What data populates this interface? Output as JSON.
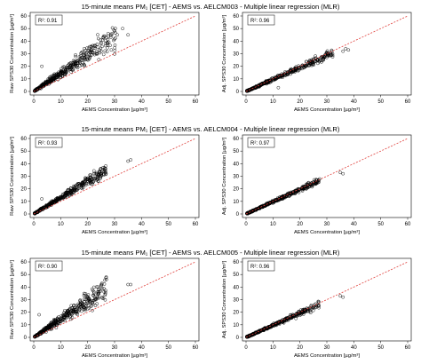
{
  "figure": {
    "rows": [
      {
        "title": "15-minute means PM₁ [CET] - AEMS vs. AELCM003 - Multiple linear regression (MLR)",
        "panels": [
          {
            "r2_label": "R²: 0.91",
            "ylabel": "Raw SPS30 Concentration [µg/m³]",
            "xlabel": "AEMS Concentration [µg/m³]"
          },
          {
            "r2_label": "R²: 0.96",
            "ylabel": "Adj. SPS30 Concentration [µg/m³]",
            "xlabel": "AEMS Concentration [µg/m³]"
          }
        ]
      },
      {
        "title": "15-minute means PM₁ [CET] - AEMS vs. AELCM004 - Multiple linear regression (MLR)",
        "panels": [
          {
            "r2_label": "R²: 0.93",
            "ylabel": "Raw SPS30 Concentration [µg/m³]",
            "xlabel": "AEMS Concentration [µg/m³]"
          },
          {
            "r2_label": "R²: 0.97",
            "ylabel": "Adj. SPS30 Concentration [µg/m³]",
            "xlabel": "AEMS Concentration [µg/m³]"
          }
        ]
      },
      {
        "title": "15-minute means PM₁ [CET] - AEMS vs. AELCM005 - Multiple linear regression (MLR)",
        "panels": [
          {
            "r2_label": "R²: 0.90",
            "ylabel": "Raw SPS30 Concentration [µg/m³]",
            "xlabel": "AEMS Concentration [µg/m³]"
          },
          {
            "r2_label": "R²: 0.96",
            "ylabel": "Adj. SPS30 Concentration [µg/m³]",
            "xlabel": "AEMS Concentration [µg/m³]"
          }
        ]
      }
    ]
  },
  "chart_data": [
    {
      "type": "scatter",
      "panel": "AELCM003 raw",
      "xlabel": "AEMS Concentration [µg/m³]",
      "ylabel": "Raw SPS30 Concentration [µg/m³]",
      "r2": 0.91,
      "xlim": [
        0,
        60
      ],
      "ylim": [
        0,
        60
      ],
      "xticks": [
        0,
        10,
        20,
        30,
        40,
        50,
        60
      ],
      "yticks": [
        0,
        10,
        20,
        30,
        40,
        50,
        60
      ],
      "reference_line": "1:1 dashed red",
      "cloud": {
        "x_max": 30,
        "slope": 1.45,
        "spread": 0.35
      },
      "outliers": [
        [
          30,
          48
        ],
        [
          31,
          45
        ],
        [
          33,
          50
        ],
        [
          35,
          45
        ],
        [
          24,
          42
        ],
        [
          26,
          44
        ],
        [
          3,
          20
        ]
      ]
    },
    {
      "type": "scatter",
      "panel": "AELCM003 MLR",
      "xlabel": "AEMS Concentration [µg/m³]",
      "ylabel": "Adj. SPS30 Concentration [µg/m³]",
      "r2": 0.96,
      "xlim": [
        0,
        60
      ],
      "ylim": [
        0,
        60
      ],
      "xticks": [
        0,
        10,
        20,
        30,
        40,
        50,
        60
      ],
      "yticks": [
        0,
        10,
        20,
        30,
        40,
        50,
        60
      ],
      "reference_line": "1:1 dashed red",
      "cloud": {
        "x_max": 32,
        "slope": 0.95,
        "spread": 0.18
      },
      "outliers": [
        [
          37,
          34
        ],
        [
          38,
          33
        ],
        [
          36,
          32
        ],
        [
          12,
          3
        ]
      ]
    },
    {
      "type": "scatter",
      "panel": "AELCM004 raw",
      "xlabel": "AEMS Concentration [µg/m³]",
      "ylabel": "Raw SPS30 Concentration [µg/m³]",
      "r2": 0.93,
      "xlim": [
        0,
        60
      ],
      "ylim": [
        0,
        60
      ],
      "xticks": [
        0,
        10,
        20,
        30,
        40,
        50,
        60
      ],
      "yticks": [
        0,
        10,
        20,
        30,
        40,
        50,
        60
      ],
      "reference_line": "1:1 dashed red",
      "cloud": {
        "x_max": 27,
        "slope": 1.3,
        "spread": 0.22
      },
      "outliers": [
        [
          35,
          42
        ],
        [
          36,
          43
        ],
        [
          3,
          12
        ]
      ]
    },
    {
      "type": "scatter",
      "panel": "AELCM004 MLR",
      "xlabel": "AEMS Concentration [µg/m³]",
      "ylabel": "Adj. SPS30 Concentration [µg/m³]",
      "r2": 0.97,
      "xlim": [
        0,
        60
      ],
      "ylim": [
        0,
        60
      ],
      "xticks": [
        0,
        10,
        20,
        30,
        40,
        50,
        60
      ],
      "yticks": [
        0,
        10,
        20,
        30,
        40,
        50,
        60
      ],
      "reference_line": "1:1 dashed red",
      "cloud": {
        "x_max": 27,
        "slope": 0.97,
        "spread": 0.13
      },
      "outliers": [
        [
          35,
          33
        ],
        [
          36,
          32
        ]
      ]
    },
    {
      "type": "scatter",
      "panel": "AELCM005 raw",
      "xlabel": "AEMS Concentration [µg/m³]",
      "ylabel": "Raw SPS30 Concentration [µg/m³]",
      "r2": 0.9,
      "xlim": [
        0,
        60
      ],
      "ylim": [
        0,
        60
      ],
      "xticks": [
        0,
        10,
        20,
        30,
        40,
        50,
        60
      ],
      "yticks": [
        0,
        10,
        20,
        30,
        40,
        50,
        60
      ],
      "reference_line": "1:1 dashed red",
      "cloud": {
        "x_max": 27,
        "slope": 1.45,
        "spread": 0.38
      },
      "outliers": [
        [
          35,
          42
        ],
        [
          36,
          42
        ],
        [
          2,
          18
        ]
      ]
    },
    {
      "type": "scatter",
      "panel": "AELCM005 MLR",
      "xlabel": "AEMS Concentration [µg/m³]",
      "ylabel": "Adj. SPS30 Concentration [µg/m³]",
      "r2": 0.96,
      "xlim": [
        0,
        60
      ],
      "ylim": [
        0,
        60
      ],
      "xticks": [
        0,
        10,
        20,
        30,
        40,
        50,
        60
      ],
      "yticks": [
        0,
        10,
        20,
        30,
        40,
        50,
        60
      ],
      "reference_line": "1:1 dashed red",
      "cloud": {
        "x_max": 27,
        "slope": 0.96,
        "spread": 0.16
      },
      "outliers": [
        [
          35,
          33
        ],
        [
          36,
          32
        ]
      ]
    }
  ]
}
